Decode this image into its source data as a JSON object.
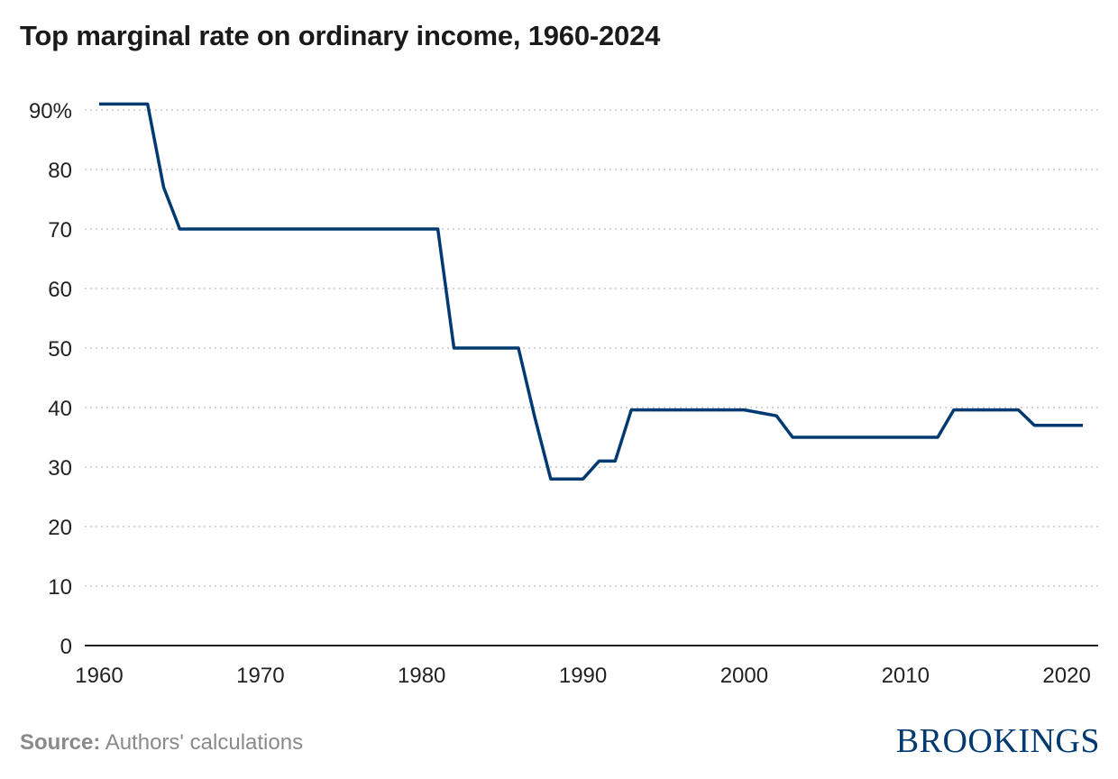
{
  "header": {
    "title": "Top marginal rate on ordinary income, 1960-2024"
  },
  "footer": {
    "source_label": "Source:",
    "source_text": "Authors' calculations",
    "logo_text": "BROOKINGS"
  },
  "colors": {
    "line": "#003a70",
    "grid": "#c8c8c8",
    "axis": "#222222"
  },
  "chart_data": {
    "type": "line",
    "title": "Top marginal rate on ordinary income, 1960-2024",
    "xlabel": "",
    "ylabel": "",
    "xlim": [
      1960,
      2021
    ],
    "ylim": [
      0,
      90
    ],
    "x_ticks": [
      1960,
      1970,
      1980,
      1990,
      2000,
      2010,
      2020
    ],
    "x_tick_labels": [
      "1960",
      "1970",
      "1980",
      "1990",
      "2000",
      "2010",
      "2020"
    ],
    "y_ticks": [
      0,
      10,
      20,
      30,
      40,
      50,
      60,
      70,
      80,
      90
    ],
    "y_tick_labels": [
      "0",
      "10",
      "20",
      "30",
      "40",
      "50",
      "60",
      "70",
      "80",
      "90%"
    ],
    "grid": "horizontal-dotted",
    "series": [
      {
        "x": [
          1960,
          1963,
          1964,
          1965,
          1981,
          1982,
          1986,
          1987,
          1988,
          1990,
          1991,
          1992,
          1993,
          2000,
          2001,
          2002,
          2003,
          2012,
          2013,
          2017,
          2018,
          2021
        ],
        "y": [
          91,
          91,
          77,
          70,
          70,
          50,
          50,
          38.5,
          28,
          28,
          31,
          31,
          39.6,
          39.6,
          39.1,
          38.6,
          35,
          35,
          39.6,
          39.6,
          37,
          37
        ]
      }
    ]
  }
}
